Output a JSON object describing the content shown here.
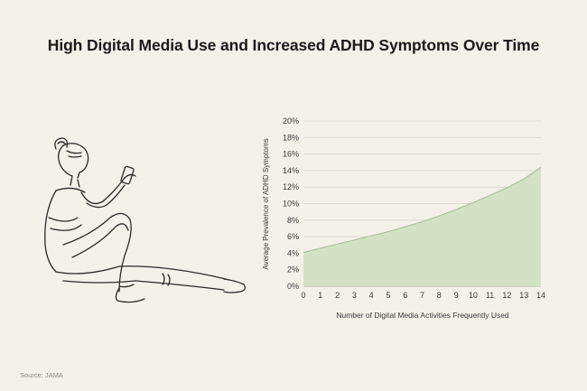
{
  "title": "High Digital Media Use and Increased ADHD Symptoms Over Time",
  "source": "Source: JAMA",
  "colors": {
    "background": "#f4f1e8",
    "area_fill": "#d3e2c5",
    "area_line": "#a9c39b",
    "grid": "#d6d6cc"
  },
  "illustration": {
    "icon": "woman-sitting-with-phone-illustration"
  },
  "chart_data": {
    "type": "area",
    "xlabel": "Number of Digital Media Activities Frequently Used",
    "ylabel": "Average Prevalence of ADHD Symptoms",
    "xlim": [
      0,
      14
    ],
    "ylim": [
      0,
      20
    ],
    "x_ticks": [
      0,
      1,
      2,
      3,
      4,
      5,
      6,
      7,
      8,
      9,
      10,
      11,
      12,
      13,
      14
    ],
    "y_ticks": [
      "0%",
      "2%",
      "4%",
      "6%",
      "8%",
      "10%",
      "12%",
      "14%",
      "16%",
      "18%",
      "20%"
    ],
    "grid": "horizontal",
    "series": [
      {
        "x": [
          0,
          1,
          2,
          3,
          4,
          5,
          6,
          7,
          8,
          9,
          10,
          11,
          12,
          13,
          14
        ],
        "y": [
          4.1,
          4.6,
          5.1,
          5.6,
          6.1,
          6.6,
          7.2,
          7.8,
          8.5,
          9.3,
          10.1,
          11.0,
          11.9,
          13.0,
          14.4
        ]
      }
    ]
  }
}
